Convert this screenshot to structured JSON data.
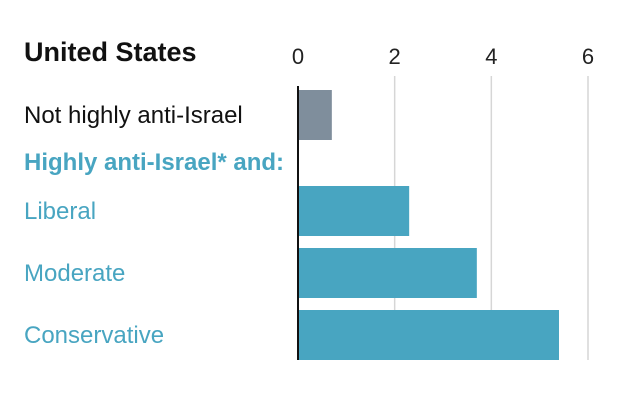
{
  "chart_data": {
    "type": "bar",
    "orientation": "horizontal",
    "title": "United States",
    "group_label": "Highly anti-Israel* and:",
    "categories": [
      "Not highly anti-Israel",
      "Liberal",
      "Moderate",
      "Conservative"
    ],
    "values": [
      0.7,
      2.3,
      3.7,
      5.4
    ],
    "bar_colors": [
      "#7f8e9c",
      "#48a5c1",
      "#48a5c1",
      "#48a5c1"
    ],
    "label_colors": [
      "#111111",
      "#48a5c1",
      "#48a5c1",
      "#48a5c1"
    ],
    "group_label_color": "#48a5c1",
    "xlim": [
      0,
      6
    ],
    "xticks": [
      "0",
      "2",
      "4",
      "6"
    ],
    "tick_values": [
      0,
      2,
      4,
      6
    ],
    "grid": true,
    "xlabel": "",
    "ylabel": ""
  }
}
